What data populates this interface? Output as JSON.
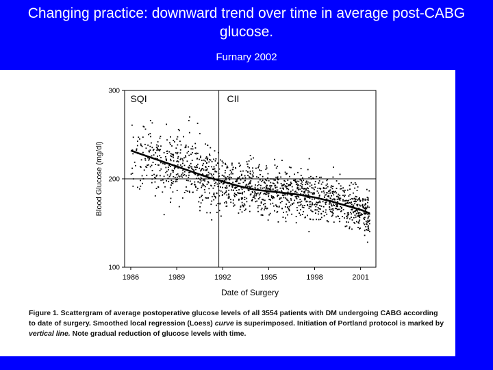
{
  "slide": {
    "title": "Changing practice: downward trend over time in average post-CABG glucose.",
    "subtitle": "Furnary 2002",
    "background": "#0000ff",
    "title_color": "#ffffff"
  },
  "caption": {
    "label": "Figure 1.",
    "text_1": " Scattergram of average postoperative glucose levels of all 3554 patients with DM undergoing CABG according to date of surgery. Smoothed local regression (Loess) ",
    "curve_word": "curve",
    "text_2": " is superimposed. Initiation of Portland protocol is marked by ",
    "vline_words": "vertical line.",
    "text_3": " Note gradual reduction of glucose levels with time."
  },
  "chart_data": {
    "type": "scatter",
    "title": "",
    "xlabel": "Date of Surgery",
    "ylabel": "Blood Glucose (mg/dl)",
    "xlim": [
      1985.6,
      2002.0
    ],
    "ylim": [
      100,
      300
    ],
    "x_ticks": [
      "1986",
      "1989",
      "1992",
      "1995",
      "1998",
      "2001"
    ],
    "y_ticks": [
      "100",
      "200",
      "300"
    ],
    "y_tick_values": [
      100,
      200,
      300
    ],
    "x_tick_values": [
      1986,
      1989,
      1992,
      1995,
      1998,
      2001
    ],
    "reference_lines": {
      "vertical_x": 1991.75,
      "horizontal_y": 200
    },
    "annotations": [
      {
        "text": "SQI",
        "x": 1985.8,
        "y": 290
      },
      {
        "text": "CII",
        "x": 1992.1,
        "y": 290
      }
    ],
    "n_points": 3554,
    "loess_curve": {
      "x": [
        1986.0,
        1987.0,
        1988.0,
        1989.0,
        1990.0,
        1991.0,
        1992.0,
        1993.0,
        1994.0,
        1995.0,
        1996.0,
        1997.0,
        1998.0,
        1999.0,
        2000.0,
        2001.0,
        2001.6
      ],
      "y": [
        232,
        226,
        220,
        214,
        208,
        202,
        197,
        192,
        188,
        186,
        184,
        182,
        179,
        175,
        170,
        165,
        161
      ]
    },
    "grid": false,
    "point_color": "#000000"
  }
}
